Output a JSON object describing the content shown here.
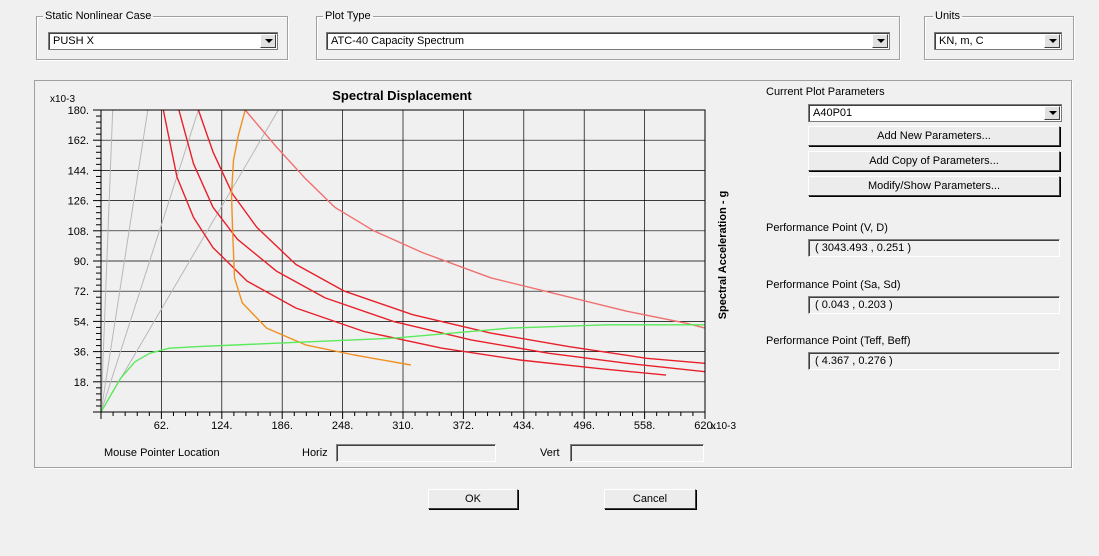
{
  "top": {
    "case_group": {
      "title": "Static Nonlinear Case",
      "value": "PUSH X"
    },
    "plot_group": {
      "title": "Plot Type",
      "value": "ATC-40 Capacity Spectrum"
    },
    "units_group": {
      "title": "Units",
      "value": "KN, m, C"
    }
  },
  "right": {
    "params_label": "Current Plot Parameters",
    "params_value": "A40P01",
    "add_new": "Add New Parameters...",
    "add_copy": "Add Copy of Parameters...",
    "modify": "Modify/Show Parameters...",
    "pp_vd_label": "Performance Point (V, D)",
    "pp_vd_value": "( 3043.493 , 0.251 )",
    "pp_sasd_label": "Performance Point (Sa, Sd)",
    "pp_sasd_value": "( 0.043 , 0.203 )",
    "pp_teff_label": "Performance Point (Teff, Beff)",
    "pp_teff_value": "( 4.367 , 0.276 )"
  },
  "mouse": {
    "label": "Mouse Pointer Location",
    "horiz": "Horiz",
    "vert": "Vert",
    "horiz_value": "",
    "vert_value": ""
  },
  "buttons": {
    "ok": "OK",
    "cancel": "Cancel"
  },
  "chart_data": {
    "type": "line",
    "title": "Spectral Displacement",
    "ylabel": "Spectral Acceleration - g",
    "xscale_label": "x10-3",
    "yscale_label": "x10-3",
    "xlim": [
      0,
      620
    ],
    "ylim": [
      0,
      180
    ],
    "x_ticks": [
      62,
      124,
      186,
      248,
      310,
      372,
      434,
      496,
      558,
      620
    ],
    "x_tick_labels": [
      "62.",
      "124.",
      "186.",
      "248.",
      "310.",
      "372.",
      "434.",
      "496.",
      "558.",
      "620."
    ],
    "y_ticks": [
      18,
      36,
      54,
      72,
      90,
      108,
      126,
      144,
      162,
      180
    ],
    "y_tick_labels": [
      "18.",
      "36.",
      "54.",
      "72.",
      "90.",
      "108.",
      "126.",
      "144.",
      "162.",
      "180."
    ],
    "colors": {
      "demand": "#e8202a",
      "demand_reduced": "#f07070",
      "capacity": "#5aea5a",
      "adrs": "#f09020",
      "period": "#b8b8b8"
    },
    "series": [
      {
        "role": "period",
        "x": [
          0,
          12
        ],
        "y": [
          0,
          180
        ]
      },
      {
        "role": "period",
        "x": [
          0,
          48
        ],
        "y": [
          0,
          180
        ]
      },
      {
        "role": "period",
        "x": [
          0,
          100
        ],
        "y": [
          0,
          180
        ]
      },
      {
        "role": "period",
        "x": [
          0,
          182
        ],
        "y": [
          0,
          180
        ]
      },
      {
        "role": "demand_reduced",
        "x": [
          148,
          180,
          210,
          240,
          280,
          330,
          400,
          470,
          540,
          600,
          620
        ],
        "y": [
          180,
          158,
          139,
          122,
          108,
          95,
          80,
          70,
          60,
          53,
          50
        ]
      },
      {
        "role": "demand",
        "x": [
          100,
          115,
          135,
          160,
          200,
          250,
          320,
          400,
          480,
          560,
          620
        ],
        "y": [
          180,
          155,
          130,
          110,
          88,
          72,
          58,
          47,
          39,
          32,
          29
        ]
      },
      {
        "role": "demand",
        "x": [
          80,
          95,
          115,
          140,
          180,
          230,
          300,
          380,
          460,
          540,
          620
        ],
        "y": [
          180,
          148,
          122,
          103,
          84,
          68,
          54,
          43,
          35,
          29,
          24
        ]
      },
      {
        "role": "demand",
        "x": [
          64,
          78,
          95,
          115,
          150,
          200,
          270,
          350,
          430,
          510,
          580
        ],
        "y": [
          180,
          140,
          116,
          98,
          78,
          62,
          48,
          38,
          31,
          26,
          22
        ]
      },
      {
        "role": "adrs",
        "x": [
          148,
          141,
          136,
          134,
          135,
          137,
          145,
          170,
          210,
          260,
          318
        ],
        "y": [
          180,
          165,
          150,
          130,
          110,
          80,
          65,
          50,
          40,
          34,
          28
        ]
      },
      {
        "role": "capacity",
        "x": [
          0,
          10,
          20,
          35,
          50,
          70,
          100,
          180,
          300,
          420,
          520,
          620
        ],
        "y": [
          0,
          10,
          20,
          30,
          35,
          38,
          39,
          41,
          44,
          50,
          52,
          52
        ]
      }
    ]
  }
}
